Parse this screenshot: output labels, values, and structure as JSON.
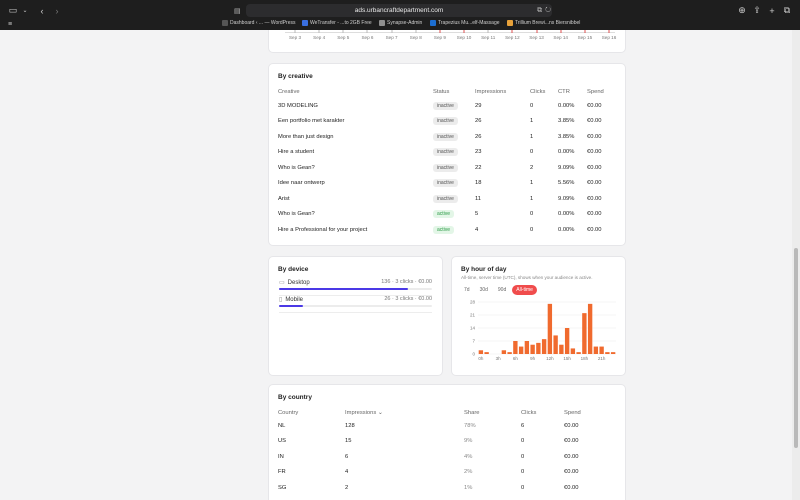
{
  "browser": {
    "url": "ads.urbancraftdepartment.com",
    "bookmarks": [
      {
        "label": "Dashboard ‹ ... — WordPress",
        "color": "#6d6d6d"
      },
      {
        "label": "WeTransfer - ...to 2GB Free",
        "color": "#3a6fe0"
      },
      {
        "label": "Synapse-Admin",
        "color": "#8f8f8f"
      },
      {
        "label": "Trapezius Mu...elf-Massage",
        "color": "#1c6ed1"
      },
      {
        "label": "Trillium Brewi...ns Biersnibbel",
        "color": "#e8a23a"
      }
    ]
  },
  "timeline": {
    "ticks": [
      "Sep 3",
      "Sep 4",
      "Sep 5",
      "Sep 6",
      "Sep 7",
      "Sep 8",
      "Sep 9",
      "Sep 10",
      "Sep 11",
      "Sep 12",
      "Sep 13",
      "Sep 14",
      "Sep 15",
      "Sep 16"
    ],
    "highlighted": [
      false,
      false,
      false,
      false,
      false,
      false,
      true,
      true,
      false,
      true,
      true,
      true,
      true,
      true
    ]
  },
  "by_creative": {
    "title": "By creative",
    "headers": {
      "creative": "Creative",
      "status": "Status",
      "impressions": "Impressions",
      "clicks": "Clicks",
      "ctr": "CTR",
      "spend": "Spend"
    },
    "rows": [
      {
        "creative": "3D MODELING",
        "status": "inactive",
        "impressions": "29",
        "clicks": "0",
        "ctr": "0.00%",
        "spend": "€0.00"
      },
      {
        "creative": "Een portfolio met karakter",
        "status": "inactive",
        "impressions": "26",
        "clicks": "1",
        "ctr": "3.85%",
        "spend": "€0.00"
      },
      {
        "creative": "More than just design",
        "status": "inactive",
        "impressions": "26",
        "clicks": "1",
        "ctr": "3.85%",
        "spend": "€0.00"
      },
      {
        "creative": "Hire a student",
        "status": "inactive",
        "impressions": "23",
        "clicks": "0",
        "ctr": "0.00%",
        "spend": "€0.00"
      },
      {
        "creative": "Who is Gean?",
        "status": "inactive",
        "impressions": "22",
        "clicks": "2",
        "ctr": "9.09%",
        "spend": "€0.00"
      },
      {
        "creative": "Idee naar ontwerp",
        "status": "inactive",
        "impressions": "18",
        "clicks": "1",
        "ctr": "5.56%",
        "spend": "€0.00"
      },
      {
        "creative": "Arist",
        "status": "inactive",
        "impressions": "11",
        "clicks": "1",
        "ctr": "9.09%",
        "spend": "€0.00"
      },
      {
        "creative": "Who is Gean?",
        "status": "active",
        "impressions": "5",
        "clicks": "0",
        "ctr": "0.00%",
        "spend": "€0.00"
      },
      {
        "creative": "Hire a Professional for your project",
        "status": "active",
        "impressions": "4",
        "clicks": "0",
        "ctr": "0.00%",
        "spend": "€0.00"
      }
    ]
  },
  "by_device": {
    "title": "By device",
    "rows": [
      {
        "name": "Desktop",
        "stat": "136 · 3 clicks · €0.00",
        "share": 0.84
      },
      {
        "name": "Mobile",
        "stat": "26 · 3 clicks · €0.00",
        "share": 0.16
      }
    ]
  },
  "by_hour": {
    "title": "By hour of day",
    "subtitle": "All-time, server time (UTC), shows when your audience is active.",
    "tabs": [
      "7d",
      "30d",
      "90d",
      "All-time"
    ],
    "active_tab": "All-time",
    "bar_color": "#f06a2e"
  },
  "chart_data": {
    "type": "bar",
    "title": "",
    "xlabel": "",
    "ylabel": "",
    "ylim": [
      0,
      28
    ],
    "yticks": [
      0,
      7,
      14,
      21,
      28
    ],
    "xtick_labels": [
      "0h",
      "3h",
      "6h",
      "9h",
      "12h",
      "15h",
      "18h",
      "21h"
    ],
    "categories": [
      "0h",
      "1h",
      "2h",
      "3h",
      "4h",
      "5h",
      "6h",
      "7h",
      "8h",
      "9h",
      "10h",
      "11h",
      "12h",
      "13h",
      "14h",
      "15h",
      "16h",
      "17h",
      "18h",
      "19h",
      "20h",
      "21h",
      "22h",
      "23h"
    ],
    "values": [
      2,
      1,
      0,
      0,
      2,
      1,
      7,
      4,
      7,
      5,
      6,
      8,
      27,
      10,
      5,
      14,
      3,
      1,
      22,
      27,
      4,
      4,
      1,
      1
    ]
  },
  "by_country": {
    "title": "By country",
    "headers": {
      "country": "Country",
      "impressions": "Impressions ⌄",
      "share": "Share",
      "clicks": "Clicks",
      "spend": "Spend"
    },
    "rows": [
      {
        "country": "NL",
        "impressions": "128",
        "share": "78%",
        "clicks": "6",
        "spend": "€0.00"
      },
      {
        "country": "US",
        "impressions": "15",
        "share": "9%",
        "clicks": "0",
        "spend": "€0.00"
      },
      {
        "country": "IN",
        "impressions": "6",
        "share": "4%",
        "clicks": "0",
        "spend": "€0.00"
      },
      {
        "country": "FR",
        "impressions": "4",
        "share": "2%",
        "clicks": "0",
        "spend": "€0.00"
      },
      {
        "country": "SG",
        "impressions": "2",
        "share": "1%",
        "clicks": "0",
        "spend": "€0.00"
      }
    ]
  }
}
